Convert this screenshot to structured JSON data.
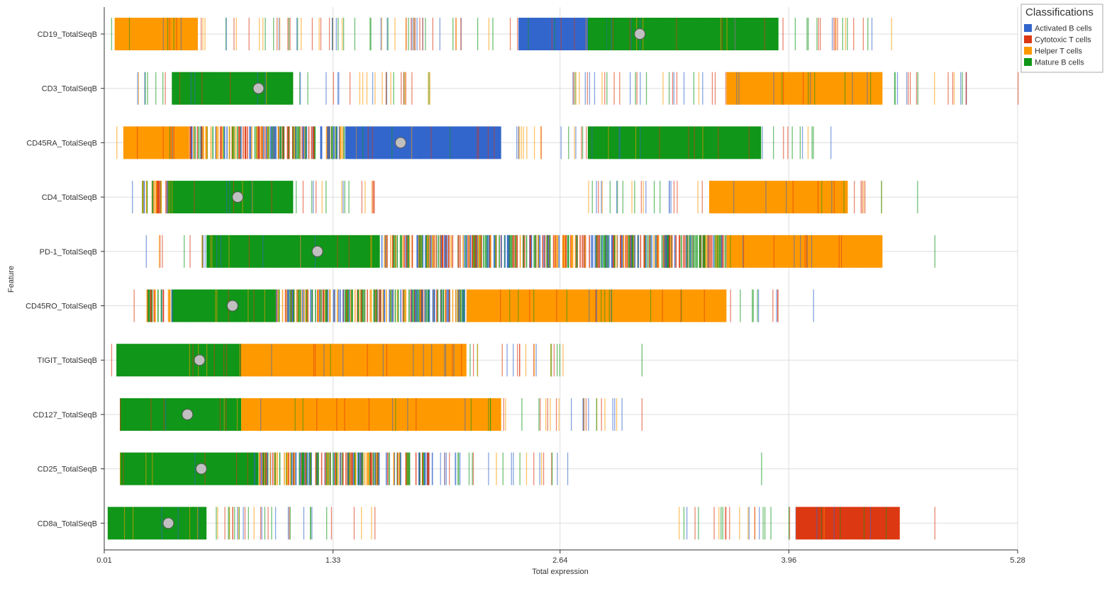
{
  "chart_data": {
    "type": "strip",
    "xlabel": "Total expression",
    "ylabel": "Feature",
    "xlim": [
      0.01,
      5.28
    ],
    "xticks": [
      "0.01",
      "1.33",
      "2.64",
      "3.96",
      "5.28"
    ],
    "grid": true,
    "legend": {
      "title": "Classifications",
      "placement": "top-right",
      "entries": [
        {
          "name": "Activated B cells",
          "color": "#3366cc"
        },
        {
          "name": "Cytotoxic T cells",
          "color": "#dc3912"
        },
        {
          "name": "Helper T cells",
          "color": "#ff9900"
        },
        {
          "name": "Mature B cells",
          "color": "#109618"
        }
      ]
    },
    "features": [
      {
        "name": "CD19_TotalSeqB",
        "median": 3.1,
        "min": 0.05,
        "max": 4.55,
        "segments": [
          {
            "from": 0.07,
            "to": 0.55,
            "cls": "Helper T cells"
          },
          {
            "from": 0.55,
            "to": 2.4,
            "cls": "mixed-sparse"
          },
          {
            "from": 2.4,
            "to": 2.8,
            "cls": "Activated B cells"
          },
          {
            "from": 2.8,
            "to": 3.9,
            "cls": "Mature B cells"
          },
          {
            "from": 3.9,
            "to": 4.45,
            "cls": "mixed-sparse"
          }
        ]
      },
      {
        "name": "CD3_TotalSeqB",
        "median": 0.9,
        "min": 0.2,
        "max": 5.28,
        "segments": [
          {
            "from": 0.2,
            "to": 0.4,
            "cls": "mixed-sparse"
          },
          {
            "from": 0.4,
            "to": 1.1,
            "cls": "Mature B cells"
          },
          {
            "from": 1.1,
            "to": 1.9,
            "cls": "mixed-sparse"
          },
          {
            "from": 2.7,
            "to": 3.6,
            "cls": "mixed-sparse"
          },
          {
            "from": 3.6,
            "to": 4.5,
            "cls": "Helper T cells"
          },
          {
            "from": 4.5,
            "to": 5.0,
            "cls": "mixed-sparse"
          }
        ]
      },
      {
        "name": "CD45RA_TotalSeqB",
        "median": 1.72,
        "min": 0.08,
        "max": 4.2,
        "segments": [
          {
            "from": 0.12,
            "to": 0.5,
            "cls": "Helper T cells"
          },
          {
            "from": 0.5,
            "to": 1.4,
            "cls": "mixed-dense"
          },
          {
            "from": 1.4,
            "to": 2.3,
            "cls": "Activated B cells"
          },
          {
            "from": 2.3,
            "to": 2.8,
            "cls": "mixed-sparse"
          },
          {
            "from": 2.8,
            "to": 3.8,
            "cls": "Mature B cells"
          },
          {
            "from": 3.8,
            "to": 4.1,
            "cls": "mixed-sparse"
          }
        ]
      },
      {
        "name": "CD4_TotalSeqB",
        "median": 0.78,
        "min": 0.17,
        "max": 4.7,
        "segments": [
          {
            "from": 0.22,
            "to": 0.38,
            "cls": "mixed-dense"
          },
          {
            "from": 0.38,
            "to": 1.1,
            "cls": "Mature B cells"
          },
          {
            "from": 1.1,
            "to": 1.6,
            "cls": "mixed-sparse"
          },
          {
            "from": 2.8,
            "to": 3.5,
            "cls": "mixed-sparse"
          },
          {
            "from": 3.5,
            "to": 4.3,
            "cls": "Helper T cells"
          },
          {
            "from": 4.3,
            "to": 4.5,
            "cls": "mixed-sparse"
          }
        ]
      },
      {
        "name": "PD-1_TotalSeqB",
        "median": 1.24,
        "min": 0.25,
        "max": 4.8,
        "segments": [
          {
            "from": 0.3,
            "to": 0.6,
            "cls": "mixed-sparse"
          },
          {
            "from": 0.6,
            "to": 1.6,
            "cls": "Mature B cells"
          },
          {
            "from": 1.6,
            "to": 3.6,
            "cls": "mixed-dense"
          },
          {
            "from": 3.6,
            "to": 4.5,
            "cls": "Helper T cells"
          }
        ]
      },
      {
        "name": "CD45RO_TotalSeqB",
        "median": 0.75,
        "min": 0.18,
        "max": 4.1,
        "segments": [
          {
            "from": 0.25,
            "to": 0.4,
            "cls": "mixed-dense"
          },
          {
            "from": 0.4,
            "to": 1.0,
            "cls": "Mature B cells"
          },
          {
            "from": 1.0,
            "to": 2.1,
            "cls": "mixed-dense"
          },
          {
            "from": 2.1,
            "to": 3.6,
            "cls": "Helper T cells"
          },
          {
            "from": 3.6,
            "to": 3.9,
            "cls": "mixed-sparse"
          }
        ]
      },
      {
        "name": "TIGIT_TotalSeqB",
        "median": 0.56,
        "min": 0.05,
        "max": 3.11,
        "segments": [
          {
            "from": 0.08,
            "to": 0.8,
            "cls": "Mature B cells"
          },
          {
            "from": 0.8,
            "to": 2.1,
            "cls": "Helper T cells"
          },
          {
            "from": 2.1,
            "to": 2.7,
            "cls": "mixed-sparse"
          }
        ]
      },
      {
        "name": "CD127_TotalSeqB",
        "median": 0.49,
        "min": 0.1,
        "max": 3.11,
        "segments": [
          {
            "from": 0.1,
            "to": 0.8,
            "cls": "Mature B cells"
          },
          {
            "from": 0.8,
            "to": 2.3,
            "cls": "Helper T cells"
          },
          {
            "from": 2.3,
            "to": 3.0,
            "cls": "mixed-sparse"
          }
        ]
      },
      {
        "name": "CD25_TotalSeqB",
        "median": 0.57,
        "min": 0.1,
        "max": 3.8,
        "segments": [
          {
            "from": 0.1,
            "to": 0.9,
            "cls": "Mature B cells"
          },
          {
            "from": 0.9,
            "to": 1.9,
            "cls": "mixed-dense"
          },
          {
            "from": 1.9,
            "to": 2.7,
            "cls": "mixed-sparse"
          }
        ]
      },
      {
        "name": "CD8a_TotalSeqB",
        "median": 0.38,
        "min": 0.03,
        "max": 4.8,
        "segments": [
          {
            "from": 0.03,
            "to": 0.6,
            "cls": "Mature B cells"
          },
          {
            "from": 0.6,
            "to": 1.6,
            "cls": "mixed-sparse"
          },
          {
            "from": 3.3,
            "to": 4.0,
            "cls": "mixed-sparse"
          },
          {
            "from": 4.0,
            "to": 4.6,
            "cls": "Cytotoxic T cells"
          }
        ]
      }
    ]
  }
}
